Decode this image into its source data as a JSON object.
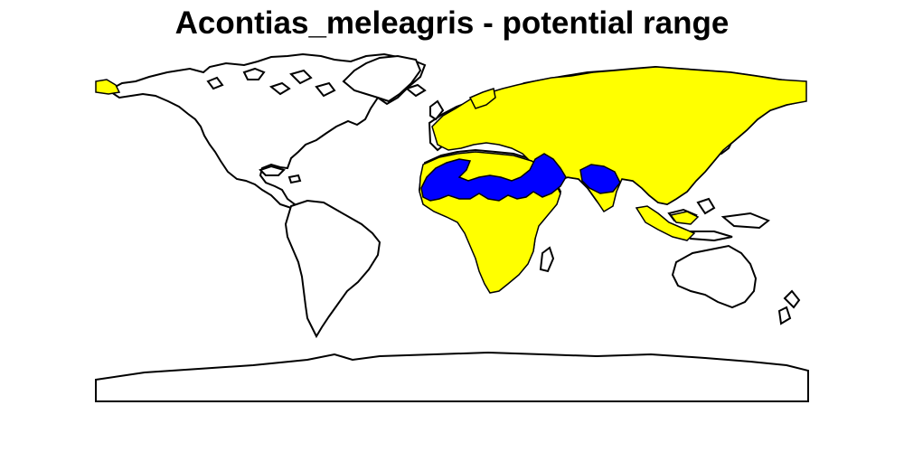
{
  "title": "Acontias_meleagris - potential range",
  "colors": {
    "background": "#ffffff",
    "land_outline": "#000000",
    "land_fill": "#ffffff",
    "potential_range": "#ffff00",
    "core_range": "#0000ff"
  },
  "layers": [
    {
      "name": "world-land",
      "fill": "#ffffff"
    },
    {
      "name": "potential-range",
      "fill": "#ffff00"
    },
    {
      "name": "core-range",
      "fill": "#0000ff"
    }
  ]
}
